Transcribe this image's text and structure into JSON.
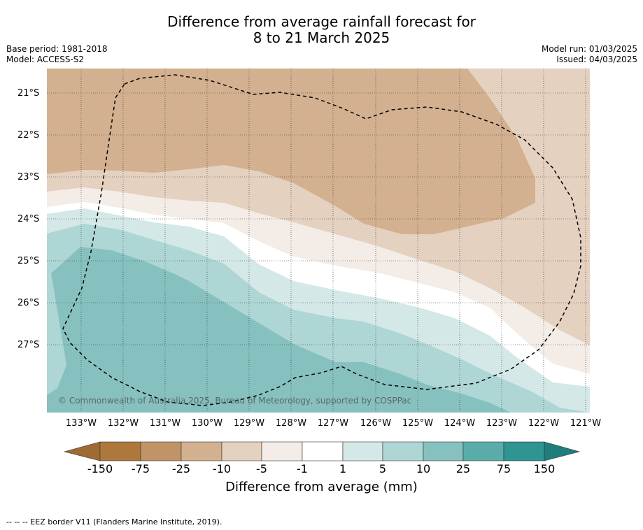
{
  "title": {
    "line1": "Difference from average rainfall forecast for",
    "line2": "8 to 21 March 2025"
  },
  "meta": {
    "base_period": "Base period: 1981-2018",
    "model": "Model: ACCESS-S2",
    "model_run": "Model run: 01/03/2025",
    "issued": "Issued: 04/03/2025"
  },
  "axes": {
    "latitudes": [
      "21°S",
      "22°S",
      "23°S",
      "24°S",
      "25°S",
      "26°S",
      "27°S"
    ],
    "longitudes": [
      "133°W",
      "132°W",
      "131°W",
      "130°W",
      "129°W",
      "128°W",
      "127°W",
      "126°W",
      "125°W",
      "124°W",
      "123°W",
      "122°W",
      "121°W"
    ]
  },
  "map_extent": {
    "lon_west": -133.8,
    "lon_east": -120.9,
    "lat_north": -20.4,
    "lat_south": -28.6
  },
  "colorbar": {
    "title": "Difference from average (mm)",
    "ticks": [
      "-150",
      "-75",
      "-25",
      "-10",
      "-5",
      "-1",
      "1",
      "5",
      "10",
      "25",
      "75",
      "150"
    ],
    "colors": [
      "#a06b32",
      "#ae783d",
      "#c19468",
      "#d3b08f",
      "#e4d1c0",
      "#f4ece6",
      "#ffffff",
      "#d4e9e7",
      "#aed6d4",
      "#86c1c0",
      "#5aacaa",
      "#2f9592",
      "#1f7e7b"
    ]
  },
  "overlays": {
    "copyright": "© Commonwealth of Australia 2025, Bureau of Meteorology, supported by COSPPac",
    "eez_footnote": "-- -- -- EEZ border V11 (Flanders Marine Institute, 2019).",
    "eez_border_style": "dashed"
  }
}
